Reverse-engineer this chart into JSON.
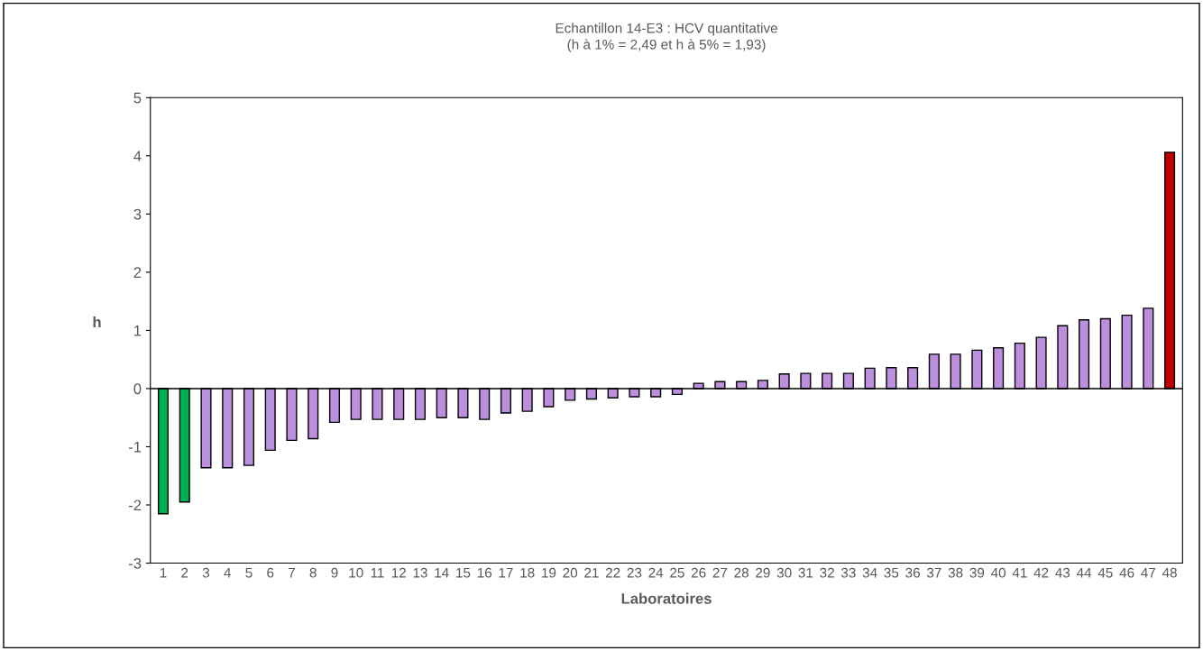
{
  "chart_data": {
    "type": "bar",
    "title": "Echantillon 14-E3 : HCV quantitative",
    "subtitle": "(h à 1% = 2,49 et h à 5% = 1,93)",
    "xlabel": "Laboratoires",
    "ylabel": "h",
    "categories": [
      "1",
      "2",
      "3",
      "4",
      "5",
      "6",
      "7",
      "8",
      "9",
      "10",
      "11",
      "12",
      "13",
      "14",
      "15",
      "16",
      "17",
      "18",
      "19",
      "20",
      "21",
      "22",
      "23",
      "24",
      "25",
      "26",
      "27",
      "28",
      "29",
      "30",
      "31",
      "32",
      "33",
      "34",
      "35",
      "36",
      "37",
      "38",
      "39",
      "40",
      "41",
      "42",
      "43",
      "44",
      "45",
      "46",
      "47",
      "48"
    ],
    "values": [
      -2.15,
      -1.95,
      -1.36,
      -1.36,
      -1.32,
      -1.06,
      -0.89,
      -0.86,
      -0.58,
      -0.53,
      -0.53,
      -0.53,
      -0.53,
      -0.5,
      -0.5,
      -0.53,
      -0.42,
      -0.39,
      -0.31,
      -0.2,
      -0.18,
      -0.16,
      -0.14,
      -0.14,
      -0.1,
      0.09,
      0.12,
      0.12,
      0.14,
      0.25,
      0.26,
      0.26,
      0.26,
      0.35,
      0.36,
      0.36,
      0.59,
      0.59,
      0.66,
      0.7,
      0.78,
      0.88,
      1.08,
      1.18,
      1.2,
      1.26,
      1.38,
      4.06
    ],
    "colors": [
      "#00b050",
      "#00b050",
      "#bc8fdd",
      "#bc8fdd",
      "#bc8fdd",
      "#bc8fdd",
      "#bc8fdd",
      "#bc8fdd",
      "#bc8fdd",
      "#bc8fdd",
      "#bc8fdd",
      "#bc8fdd",
      "#bc8fdd",
      "#bc8fdd",
      "#bc8fdd",
      "#bc8fdd",
      "#bc8fdd",
      "#bc8fdd",
      "#bc8fdd",
      "#bc8fdd",
      "#bc8fdd",
      "#bc8fdd",
      "#bc8fdd",
      "#bc8fdd",
      "#bc8fdd",
      "#bc8fdd",
      "#bc8fdd",
      "#bc8fdd",
      "#bc8fdd",
      "#bc8fdd",
      "#bc8fdd",
      "#bc8fdd",
      "#bc8fdd",
      "#bc8fdd",
      "#bc8fdd",
      "#bc8fdd",
      "#bc8fdd",
      "#bc8fdd",
      "#bc8fdd",
      "#bc8fdd",
      "#bc8fdd",
      "#bc8fdd",
      "#bc8fdd",
      "#bc8fdd",
      "#bc8fdd",
      "#bc8fdd",
      "#bc8fdd",
      "#c00000"
    ],
    "ylim": [
      -3,
      5
    ],
    "yticks": [
      -3,
      -2,
      -1,
      0,
      1,
      2,
      3,
      4,
      5
    ],
    "legend": false
  }
}
